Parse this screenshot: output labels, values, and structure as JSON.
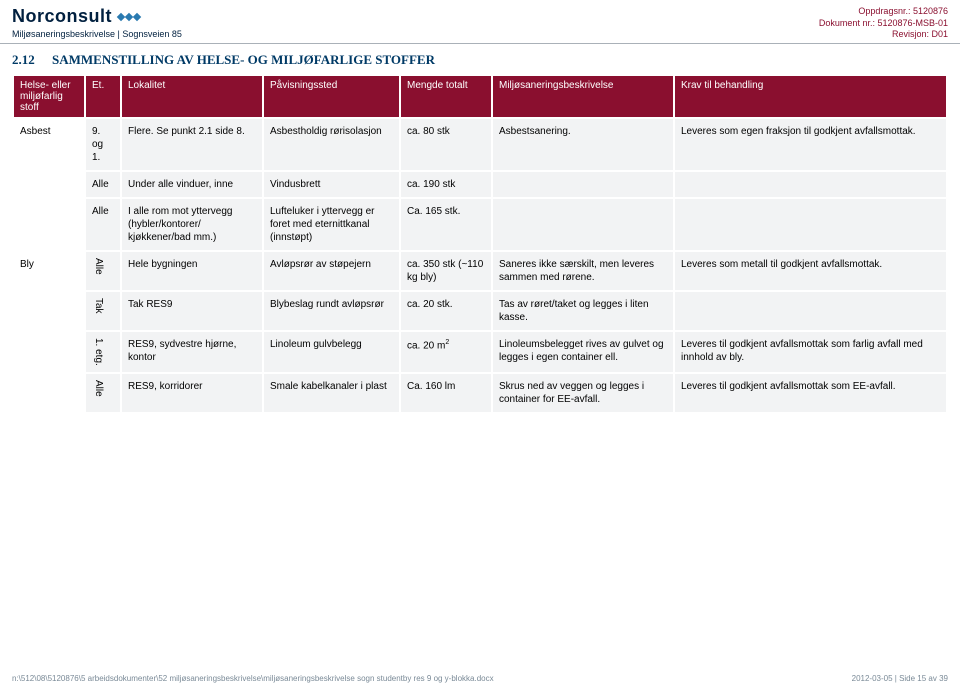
{
  "header": {
    "brand": "Norconsult",
    "subhead_left": "Miljøsaneringsbeskrivelse",
    "subhead_right": "Sognsveien 85",
    "meta1": "Oppdragsnr.: 5120876",
    "meta2": "Dokument nr.: 5120876-MSB-01",
    "meta3": "Revisjon: D01"
  },
  "section": {
    "num": "2.12",
    "title": "SAMMENSTILLING AV HELSE- OG MILJØFARLIGE STOFFER"
  },
  "table": {
    "headers": [
      "Helse- eller miljøfarlig stoff",
      "Et.",
      "Lokalitet",
      "Påvisningssted",
      "Mengde totalt",
      "Miljøsaneringsbeskrivelse",
      "Krav til behandling"
    ],
    "rows": [
      {
        "c0": "Asbest",
        "c1": "9. og 1.",
        "c2": "Flere. Se punkt 2.1 side 8.",
        "c3": "Asbestholdig rørisolasjon",
        "c4": "ca. 80 stk",
        "c5": "Asbestsanering.",
        "c6": "Leveres som egen fraksjon til godkjent avfallsmottak."
      },
      {
        "c0": "",
        "c1": "Alle",
        "c2": "Under alle vinduer, inne",
        "c3": "Vindusbrett",
        "c4": "ca. 190 stk",
        "c5": "",
        "c6": ""
      },
      {
        "c0": "",
        "c1": "Alle",
        "c2": "I alle rom mot yttervegg (hybler/kontorer/ kjøkkener/bad mm.)",
        "c3": "Lufteluker i yttervegg er foret med eternittkanal (innstøpt)",
        "c4": "Ca. 165 stk.",
        "c5": "",
        "c6": ""
      },
      {
        "c0": "Bly",
        "c1": "Alle",
        "vert": true,
        "c2": "Hele bygningen",
        "c3": "Avløpsrør av støpejern",
        "c4": "ca. 350 stk (~110 kg bly)",
        "c5": "Saneres ikke særskilt, men leveres sammen med rørene.",
        "c6": "Leveres som metall til godkjent avfallsmottak."
      },
      {
        "c0": "",
        "c1": "Tak",
        "vert": true,
        "c2": "Tak RES9",
        "c3": "Blybeslag rundt avløpsrør",
        "c4": "ca. 20 stk.",
        "c5": "Tas av røret/taket og legges i liten kasse.",
        "c6": ""
      },
      {
        "c0": "",
        "c1": "1. etg.",
        "vert": true,
        "c2": "RES9, sydvestre hjørne, kontor",
        "c3": "Linoleum gulvbelegg",
        "c4": "ca. 20 m²",
        "c5": "Linoleumsbelegget rives av gulvet og legges i egen container ell.",
        "c6": "Leveres til godkjent avfallsmottak som farlig avfall med innhold av bly."
      },
      {
        "c0": "",
        "c1": "Alle",
        "vert": true,
        "c2": "RES9, korridorer",
        "c3": "Smale kabelkanaler i plast",
        "c4": "Ca. 160 lm",
        "c5": "Skrus ned av veggen og legges i container for EE-avfall.",
        "c6": "Leveres til godkjent avfallsmottak som EE-avfall."
      }
    ]
  },
  "footer": {
    "path": "n:\\512\\08\\5120876\\5 arbeidsdokumenter\\52 miljøsaneringsbeskrivelse\\miljøsaneringsbeskrivelse sogn studentby res 9 og y-blokka.docx",
    "date_page": "2012-03-05 | Side 15 av 39"
  },
  "style": {
    "header_bg": "#8a0f2f",
    "header_fg": "#ffffff",
    "cell_bg": "#f2f3f4",
    "title_color": "#003a66",
    "font_size_body": 10,
    "font_size_title": 13,
    "font_size_footer": 8
  }
}
